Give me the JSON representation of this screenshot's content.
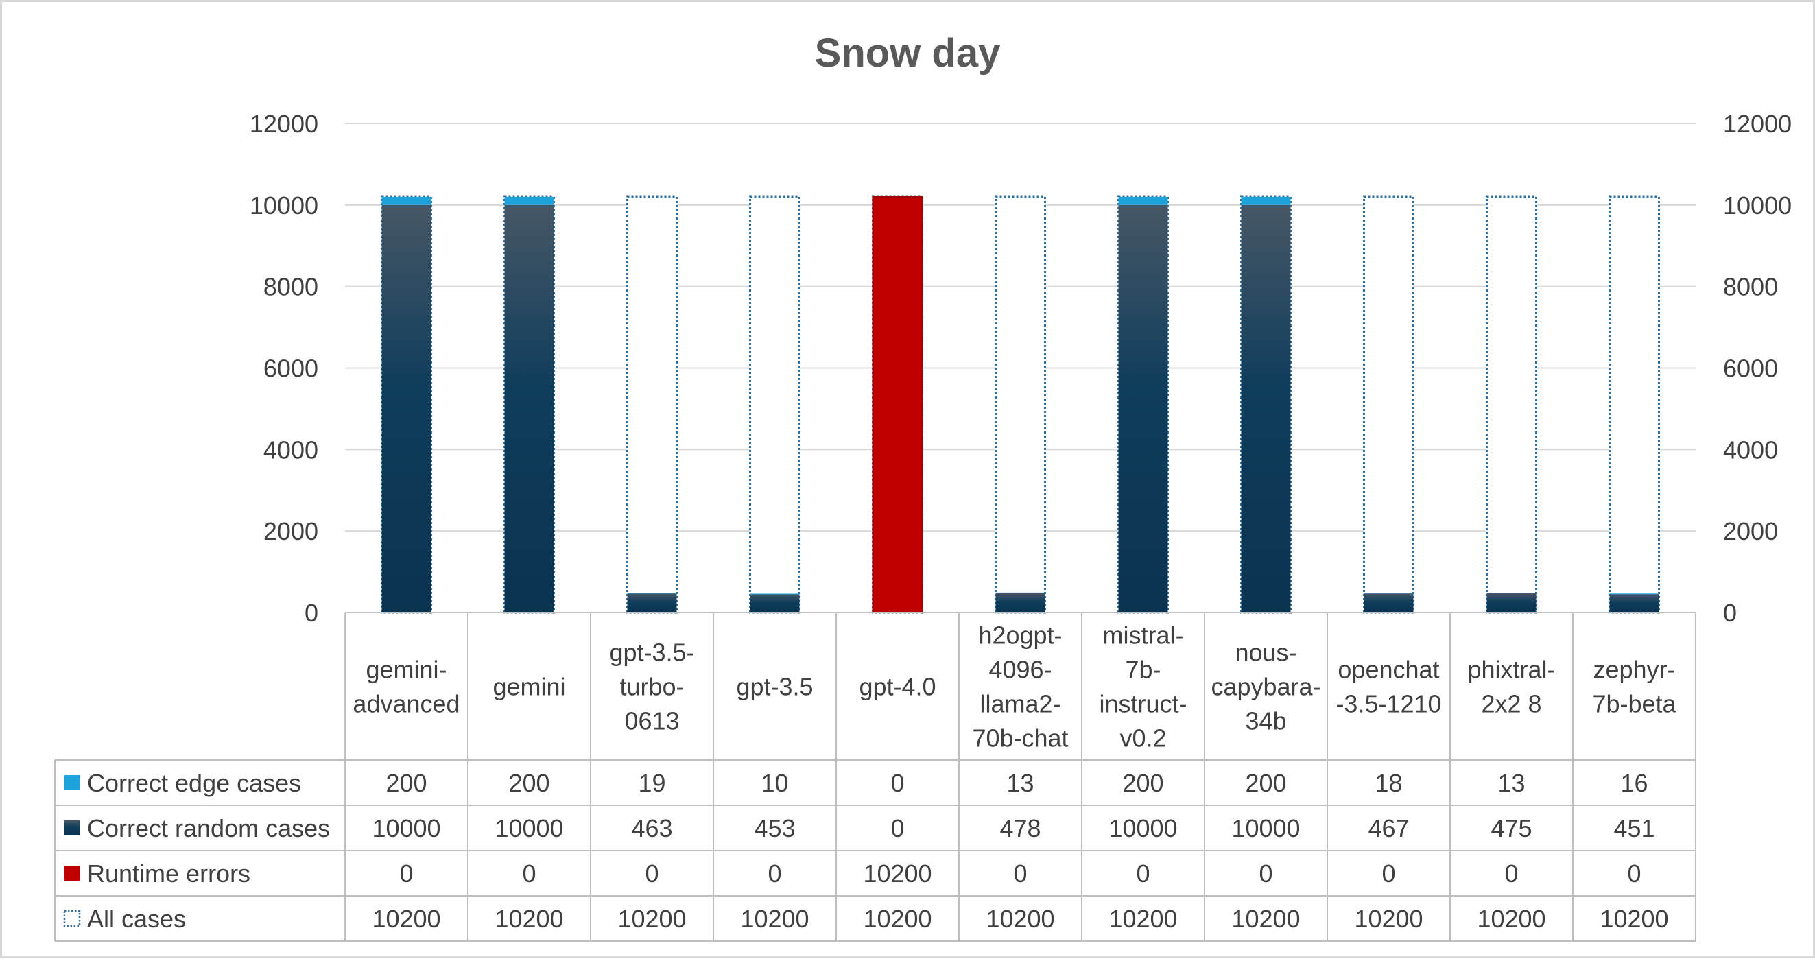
{
  "chart_data": {
    "type": "bar",
    "stacked": true,
    "title": "Snow day",
    "categories": [
      [
        "gemini-",
        "advanced"
      ],
      [
        "gemini"
      ],
      [
        "gpt-3.5-",
        "turbo-",
        "0613"
      ],
      [
        "gpt-3.5"
      ],
      [
        "gpt-4.0"
      ],
      [
        "h2ogpt-",
        "4096-",
        "llama2-",
        "70b-chat"
      ],
      [
        "mistral-",
        "7b-",
        "instruct-",
        "v0.2"
      ],
      [
        "nous-",
        "capybara-",
        "34b"
      ],
      [
        "openchat",
        "-3.5-1210"
      ],
      [
        "phixtral-",
        "2x2 8"
      ],
      [
        "zephyr-",
        "7b-beta"
      ]
    ],
    "series": [
      {
        "name": "Correct edge cases",
        "color": "#1ea2dc",
        "values": [
          200,
          200,
          19,
          10,
          0,
          13,
          200,
          200,
          18,
          13,
          16
        ]
      },
      {
        "name": "Correct random cases",
        "color": "#0e3a56",
        "values": [
          10000,
          10000,
          463,
          453,
          0,
          478,
          10000,
          10000,
          467,
          475,
          451
        ]
      },
      {
        "name": "Runtime errors",
        "color": "#c00000",
        "values": [
          0,
          0,
          0,
          0,
          10200,
          0,
          0,
          0,
          0,
          0,
          0
        ]
      },
      {
        "name": "All cases",
        "color": "#2f6f9f",
        "style": "dotted-outline",
        "values": [
          10200,
          10200,
          10200,
          10200,
          10200,
          10200,
          10200,
          10200,
          10200,
          10200,
          10200
        ]
      }
    ],
    "ylim": [
      0,
      12000
    ],
    "yticks": [
      "0",
      "2000",
      "4000",
      "6000",
      "8000",
      "10000",
      "12000"
    ],
    "secondary_axis": true,
    "grid": true,
    "legend": "data-table"
  }
}
